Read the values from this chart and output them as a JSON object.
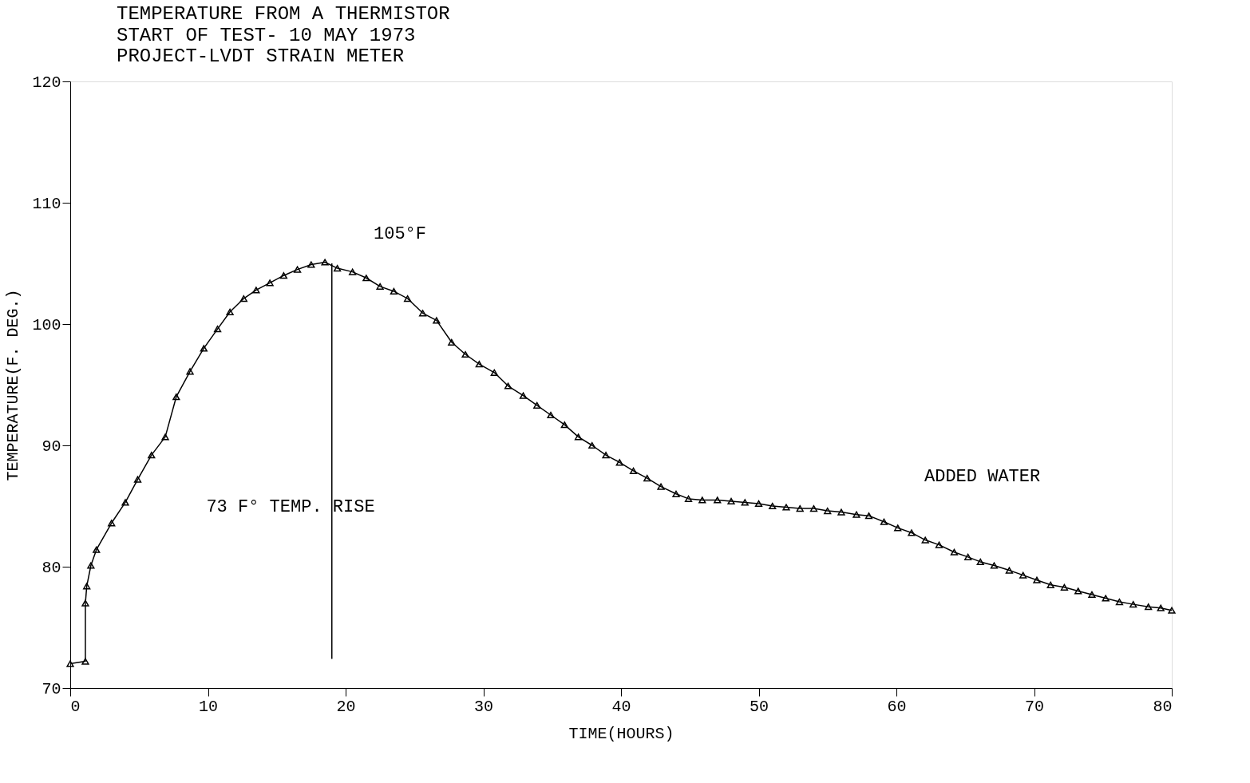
{
  "chart_data": {
    "type": "line",
    "title": "TEMPERATURE FROM A THERMISTOR",
    "subtitle": "START OF TEST- 10 MAY 1973\nPROJECT-LVDT STRAIN METER",
    "xlabel": "TIME(HOURS)",
    "ylabel": "TEMPERATURE(F. DEG.)",
    "xlim": [
      0,
      80
    ],
    "ylim": [
      70,
      120
    ],
    "xticks": [
      0,
      10,
      20,
      30,
      40,
      50,
      60,
      70,
      80
    ],
    "yticks": [
      70,
      80,
      90,
      100,
      110,
      120
    ],
    "grid": false,
    "marker": "triangle",
    "line_style": "solid",
    "series": [
      {
        "color": "#000000",
        "x": [
          0,
          1.1,
          1.1,
          1.2,
          1.5,
          1.9,
          3.0,
          4.0,
          4.9,
          5.9,
          6.9,
          7.7,
          8.7,
          9.7,
          10.7,
          11.6,
          12.6,
          13.5,
          14.5,
          15.5,
          16.5,
          17.5,
          18.5,
          19.4,
          20.5,
          21.5,
          22.5,
          23.5,
          24.5,
          25.6,
          26.6,
          27.7,
          28.7,
          29.7,
          30.8,
          31.8,
          32.9,
          33.9,
          34.9,
          35.9,
          36.9,
          37.9,
          38.9,
          39.9,
          40.9,
          41.9,
          42.9,
          44.0,
          44.9,
          45.9,
          47.0,
          48.0,
          49.0,
          50.0,
          51.0,
          52.0,
          53.0,
          54.0,
          55.0,
          56.0,
          57.1,
          58.0,
          59.1,
          60.1,
          61.1,
          62.1,
          63.1,
          64.2,
          65.2,
          66.1,
          67.1,
          68.2,
          69.2,
          70.2,
          71.2,
          72.2,
          73.2,
          74.2,
          75.2,
          76.2,
          77.2,
          78.3,
          79.2,
          80.0
        ],
        "values": [
          72.0,
          72.2,
          77.0,
          78.4,
          80.1,
          81.4,
          83.6,
          85.3,
          87.2,
          89.2,
          90.7,
          94.0,
          96.1,
          98.0,
          99.6,
          101.0,
          102.1,
          102.8,
          103.4,
          104.0,
          104.5,
          104.9,
          105.1,
          104.6,
          104.3,
          103.8,
          103.1,
          102.7,
          102.1,
          100.9,
          100.3,
          98.5,
          97.5,
          96.7,
          96.0,
          94.9,
          94.1,
          93.3,
          92.5,
          91.7,
          90.7,
          90.0,
          89.2,
          88.6,
          87.9,
          87.3,
          86.6,
          86.0,
          85.6,
          85.5,
          85.5,
          85.4,
          85.3,
          85.2,
          85.0,
          84.9,
          84.8,
          84.8,
          84.6,
          84.5,
          84.3,
          84.2,
          83.7,
          83.2,
          82.8,
          82.2,
          81.8,
          81.2,
          80.8,
          80.4,
          80.1,
          79.7,
          79.3,
          78.9,
          78.5,
          78.3,
          78.0,
          77.7,
          77.4,
          77.1,
          76.9,
          76.7,
          76.6,
          76.4
        ]
      },
      {
        "type": "line",
        "color": "#000000",
        "marker": "none",
        "x": [
          19,
          19
        ],
        "values": [
          105,
          72.4
        ]
      }
    ],
    "annotations": [
      "105°F",
      "73 F° TEMP. RISE",
      "ADDED WATER"
    ]
  }
}
